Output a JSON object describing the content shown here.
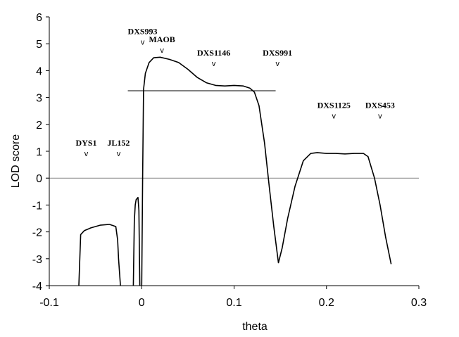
{
  "chart_data": {
    "type": "line",
    "title": "",
    "xlabel": "theta",
    "ylabel": "LOD score",
    "xlim": [
      -0.1,
      0.3
    ],
    "ylim": [
      -4,
      6
    ],
    "x_ticks": [
      -0.1,
      0,
      0.1,
      0.2,
      0.3
    ],
    "x_tick_labels": [
      "-0.1",
      "0",
      "0.1",
      "0.2",
      "0.3"
    ],
    "y_ticks": [
      -4,
      -3,
      -2,
      -1,
      0,
      1,
      2,
      3,
      4,
      5,
      6
    ],
    "y_tick_labels": [
      "-4",
      "-3",
      "-2",
      "-1",
      "0",
      "1",
      "2",
      "3",
      "4",
      "5",
      "6"
    ],
    "grid": false,
    "legend": "none",
    "reference_lines": [
      {
        "kind": "horizontal",
        "y": 0,
        "x_from": -0.1,
        "x_to": 0.3
      },
      {
        "kind": "horizontal",
        "y": 3.25,
        "x_from": -0.015,
        "x_to": 0.145
      }
    ],
    "series_color": "#000000",
    "series": [
      {
        "segments": [
          [
            [
              -0.068,
              -4.0
            ],
            [
              -0.066,
              -2.1
            ],
            [
              -0.062,
              -1.95
            ],
            [
              -0.055,
              -1.85
            ],
            [
              -0.045,
              -1.75
            ],
            [
              -0.035,
              -1.72
            ],
            [
              -0.028,
              -1.8
            ],
            [
              -0.026,
              -2.3
            ],
            [
              -0.025,
              -3.0
            ],
            [
              -0.023,
              -4.0
            ]
          ],
          [
            [
              -0.009,
              -4.0
            ],
            [
              -0.008,
              -1.6
            ],
            [
              -0.007,
              -1.0
            ],
            [
              -0.006,
              -0.8
            ],
            [
              -0.004,
              -0.72
            ],
            [
              -0.003,
              -1.2
            ],
            [
              -0.002,
              -4.0
            ]
          ],
          [
            [
              0.0,
              -4.0
            ],
            [
              0.001,
              0.0
            ],
            [
              0.002,
              3.3
            ],
            [
              0.004,
              3.9
            ],
            [
              0.008,
              4.3
            ],
            [
              0.013,
              4.48
            ],
            [
              0.02,
              4.5
            ],
            [
              0.03,
              4.42
            ],
            [
              0.04,
              4.3
            ],
            [
              0.05,
              4.05
            ],
            [
              0.06,
              3.75
            ],
            [
              0.07,
              3.55
            ],
            [
              0.08,
              3.45
            ],
            [
              0.09,
              3.43
            ],
            [
              0.1,
              3.45
            ],
            [
              0.11,
              3.43
            ],
            [
              0.117,
              3.35
            ],
            [
              0.122,
              3.2
            ],
            [
              0.127,
              2.7
            ],
            [
              0.133,
              1.3
            ],
            [
              0.138,
              -0.3
            ],
            [
              0.143,
              -1.8
            ],
            [
              0.148,
              -3.15
            ],
            [
              0.152,
              -2.6
            ],
            [
              0.158,
              -1.5
            ],
            [
              0.166,
              -0.3
            ],
            [
              0.175,
              0.65
            ],
            [
              0.183,
              0.92
            ],
            [
              0.19,
              0.95
            ],
            [
              0.2,
              0.92
            ],
            [
              0.21,
              0.92
            ],
            [
              0.22,
              0.9
            ],
            [
              0.23,
              0.92
            ],
            [
              0.24,
              0.92
            ],
            [
              0.245,
              0.8
            ],
            [
              0.252,
              0.0
            ],
            [
              0.258,
              -1.0
            ],
            [
              0.264,
              -2.2
            ],
            [
              0.27,
              -3.2
            ]
          ]
        ]
      }
    ],
    "annotations": [
      {
        "text": "DYS1",
        "x": -0.06,
        "y": 0.9
      },
      {
        "text": "JL152",
        "x": -0.025,
        "y": 0.9
      },
      {
        "text": "DXS993",
        "x": 0.001,
        "y": 5.05
      },
      {
        "text": "MAOB",
        "x": 0.022,
        "y": 4.75
      },
      {
        "text": "DXS1146",
        "x": 0.078,
        "y": 4.25
      },
      {
        "text": "DXS991",
        "x": 0.147,
        "y": 4.25
      },
      {
        "text": "DXS1125",
        "x": 0.208,
        "y": 2.3
      },
      {
        "text": "DXS453",
        "x": 0.258,
        "y": 2.3
      }
    ]
  }
}
